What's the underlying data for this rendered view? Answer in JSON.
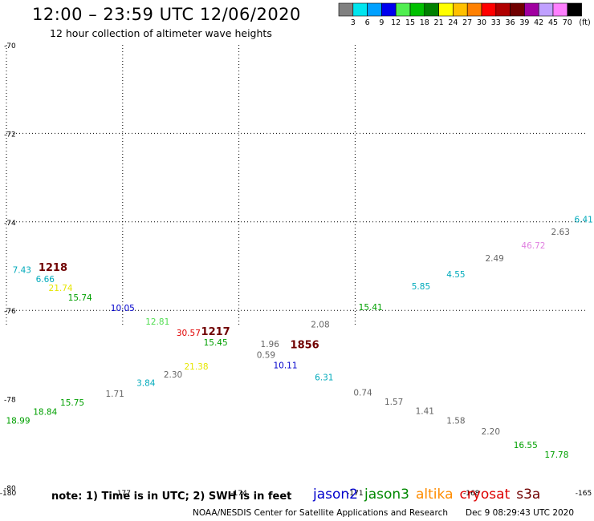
{
  "chart_data": {
    "type": "scatter",
    "title": "12:00 – 23:59 UTC 12/06/2020",
    "subtitle": "12 hour collection of altimeter wave heights",
    "xlim": [
      -180,
      -165
    ],
    "ylim": [
      -80,
      -70
    ],
    "x_ticks": [
      -180,
      -177,
      -174,
      -171,
      -168,
      -165
    ],
    "x_tick_labels": [
      "-180",
      "-177",
      "-174",
      "-171",
      "-168",
      "-165"
    ],
    "y_ticks": [
      -70,
      -72,
      -74,
      -76,
      -78,
      -80
    ],
    "y_tick_labels": [
      "-70",
      "-72",
      "-74",
      "-76",
      "-78",
      "-80"
    ],
    "gridlines_x": [
      -177,
      -174,
      -171
    ],
    "gridlines_y": [
      -72,
      -74,
      -76
    ],
    "colorbar": {
      "labels": [
        "3",
        "6",
        "9",
        "12",
        "15",
        "18",
        "21",
        "24",
        "27",
        "30",
        "33",
        "36",
        "39",
        "42",
        "45",
        "70",
        "(ft)"
      ],
      "colors": [
        "#808080",
        "#00e5ee",
        "#00a0ff",
        "#0000ee",
        "#50ee50",
        "#00c000",
        "#008000",
        "#ffff00",
        "#ffc000",
        "#ff8000",
        "#ff0000",
        "#b00000",
        "#700000",
        "#a000a0",
        "#c0a0ff",
        "#ff80ff",
        "#000000"
      ]
    },
    "points": [
      {
        "x": -179.6,
        "y": -75.08,
        "label": "7.43",
        "color": "#00aabb"
      },
      {
        "x": -178.8,
        "y": -75.04,
        "label": "1218",
        "color": "#700000",
        "bold": true
      },
      {
        "x": -179.0,
        "y": -75.29,
        "label": "6.66",
        "color": "#00aabb"
      },
      {
        "x": -178.6,
        "y": -75.49,
        "label": "21.74",
        "color": "#e6e600"
      },
      {
        "x": -178.1,
        "y": -75.71,
        "label": "15.74",
        "color": "#00a000"
      },
      {
        "x": -177.0,
        "y": -75.94,
        "label": "10.05",
        "color": "#0000cc"
      },
      {
        "x": -176.1,
        "y": -76.25,
        "label": "12.81",
        "color": "#50dd50"
      },
      {
        "x": -175.3,
        "y": -76.5,
        "label": "30.57",
        "color": "#e00000"
      },
      {
        "x": -174.6,
        "y": -76.49,
        "label": "1217",
        "color": "#700000",
        "bold": true
      },
      {
        "x": -174.6,
        "y": -76.72,
        "label": "15.45",
        "color": "#00a000"
      },
      {
        "x": -173.2,
        "y": -76.76,
        "label": "1.96",
        "color": "#666666"
      },
      {
        "x": -173.3,
        "y": -77.0,
        "label": "0.59",
        "color": "#666666"
      },
      {
        "x": -172.3,
        "y": -76.78,
        "label": "1856",
        "color": "#700000",
        "bold": true
      },
      {
        "x": -171.9,
        "y": -76.31,
        "label": "2.08",
        "color": "#666666"
      },
      {
        "x": -172.8,
        "y": -77.24,
        "label": "10.11",
        "color": "#0000cc"
      },
      {
        "x": -171.8,
        "y": -77.51,
        "label": "6.31",
        "color": "#00aabb"
      },
      {
        "x": -175.1,
        "y": -77.26,
        "label": "21.38",
        "color": "#e6e600"
      },
      {
        "x": -175.7,
        "y": -77.45,
        "label": "2.30",
        "color": "#666666"
      },
      {
        "x": -176.4,
        "y": -77.64,
        "label": "3.84",
        "color": "#00aabb"
      },
      {
        "x": -177.2,
        "y": -77.88,
        "label": "1.71",
        "color": "#666666"
      },
      {
        "x": -178.3,
        "y": -78.08,
        "label": "15.75",
        "color": "#00a000"
      },
      {
        "x": -179.0,
        "y": -78.29,
        "label": "18.84",
        "color": "#00a000"
      },
      {
        "x": -179.7,
        "y": -78.49,
        "label": "18.99",
        "color": "#00a000"
      },
      {
        "x": -170.6,
        "y": -75.92,
        "label": "15.41",
        "color": "#00a000"
      },
      {
        "x": -169.3,
        "y": -75.45,
        "label": "5.85",
        "color": "#00aabb"
      },
      {
        "x": -168.4,
        "y": -75.18,
        "label": "4.55",
        "color": "#00aabb"
      },
      {
        "x": -167.4,
        "y": -74.82,
        "label": "2.49",
        "color": "#666666"
      },
      {
        "x": -166.4,
        "y": -74.53,
        "label": "46.72",
        "color": "#e080e0"
      },
      {
        "x": -165.7,
        "y": -74.22,
        "label": "2.63",
        "color": "#666666"
      },
      {
        "x": -165.1,
        "y": -73.94,
        "label": "6.41",
        "color": "#00aabb"
      },
      {
        "x": -170.8,
        "y": -77.85,
        "label": "0.74",
        "color": "#666666"
      },
      {
        "x": -170.0,
        "y": -78.06,
        "label": "1.57",
        "color": "#666666"
      },
      {
        "x": -169.2,
        "y": -78.27,
        "label": "1.41",
        "color": "#666666"
      },
      {
        "x": -168.4,
        "y": -78.49,
        "label": "1.58",
        "color": "#666666"
      },
      {
        "x": -167.5,
        "y": -78.73,
        "label": "2.20",
        "color": "#666666"
      },
      {
        "x": -166.6,
        "y": -79.04,
        "label": "16.55",
        "color": "#00a000"
      },
      {
        "x": -165.8,
        "y": -79.26,
        "label": "17.78",
        "color": "#00a000"
      }
    ]
  },
  "footer": {
    "note": "note: 1) Time is in UTC; 2) SWH is in feet",
    "credit": "NOAA/NESDIS Center for Satellite Applications and Research",
    "timestamp": "Dec  9 08:29:43 UTC 2020"
  },
  "legend": [
    {
      "name": "jason2",
      "color": "#0000cc"
    },
    {
      "name": "jason3",
      "color": "#008800"
    },
    {
      "name": "altika",
      "color": "#ff8c00"
    },
    {
      "name": "cryosat",
      "color": "#dd0000"
    },
    {
      "name": "s3a",
      "color": "#700000"
    }
  ]
}
